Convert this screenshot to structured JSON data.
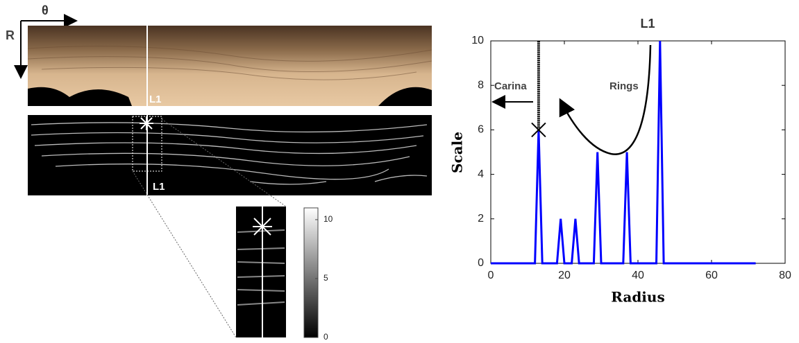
{
  "figure": {
    "theta_label": "θ",
    "r_label": "R",
    "panel_labels": [
      "L1",
      "L1"
    ],
    "colorbar": {
      "lim": [
        0,
        11
      ],
      "ticks": [
        0,
        5,
        10
      ]
    }
  },
  "chart_data": {
    "type": "line",
    "title": "L1",
    "x_label": "Radius",
    "y_label": "Scale",
    "annotations": [
      "Carina",
      "Rings"
    ],
    "x": [
      0,
      12,
      13,
      14,
      18,
      19,
      20,
      22,
      23,
      24,
      28,
      29,
      30,
      36,
      37,
      38,
      45,
      46,
      47,
      72
    ],
    "series": [
      {
        "name": "Scale",
        "color": "#0000ff",
        "values": [
          0,
          0,
          6,
          0,
          0,
          2,
          0,
          0,
          2,
          0,
          0,
          5,
          0,
          0,
          5,
          0,
          0,
          10,
          0,
          0
        ]
      }
    ],
    "xlim": [
      0,
      80
    ],
    "xticks": [
      0,
      20,
      40,
      60,
      80
    ],
    "ylim": [
      0,
      10
    ],
    "yticks": [
      0,
      2,
      4,
      6,
      8,
      10
    ],
    "grid": false
  }
}
